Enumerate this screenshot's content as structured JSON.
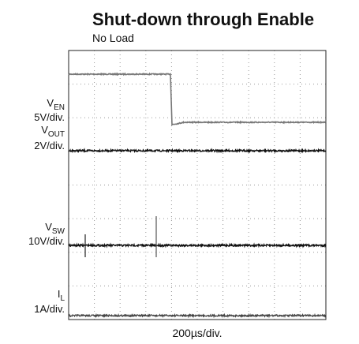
{
  "title": "Shut-down through Enable",
  "subtitle": "No Load",
  "channels": [
    {
      "symbol": "V",
      "sub": "EN",
      "scale": "5V/div."
    },
    {
      "symbol": "V",
      "sub": "OUT",
      "scale": "2V/div."
    },
    {
      "symbol": "V",
      "sub": "SW",
      "scale": "10V/div."
    },
    {
      "symbol": "I",
      "sub": "L",
      "scale": "1A/div."
    }
  ],
  "timebase": "200µs/div."
}
